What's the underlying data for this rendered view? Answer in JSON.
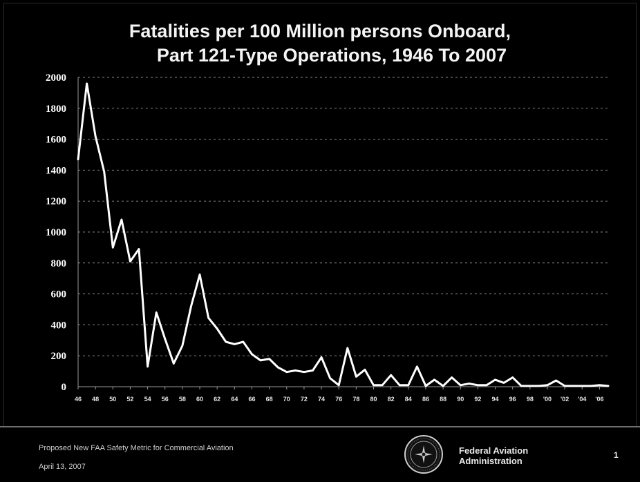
{
  "chart_data": {
    "type": "line",
    "title": [
      "Fatalities per 100 Million persons Onboard,",
      "Part 121-Type Operations, 1946 To 2007"
    ],
    "xlabel": "",
    "ylabel": "",
    "ylim": [
      0,
      2000
    ],
    "y_ticks": [
      "0",
      "200",
      "400",
      "600",
      "800",
      "1000",
      "1200",
      "1400",
      "1600",
      "1800",
      "2000"
    ],
    "x_ticks": [
      "46",
      "48",
      "50",
      "52",
      "54",
      "56",
      "58",
      "60",
      "62",
      "64",
      "66",
      "68",
      "70",
      "72",
      "74",
      "76",
      "78",
      "80",
      "82",
      "84",
      "86",
      "88",
      "90",
      "92",
      "94",
      "96",
      "98",
      "'00",
      "'02",
      "'04",
      "'06"
    ],
    "x_range": [
      1946,
      2007
    ],
    "grid": "horizontal dashed",
    "series": [
      {
        "x": [
          1946,
          1947,
          1948,
          1949,
          1950,
          1951,
          1952,
          1953,
          1954,
          1955,
          1956,
          1957,
          1958,
          1959,
          1960,
          1961,
          1962,
          1963,
          1964,
          1965,
          1966,
          1967,
          1968,
          1969,
          1970,
          1971,
          1972,
          1973,
          1974,
          1975,
          1976,
          1977,
          1978,
          1979,
          1980,
          1981,
          1982,
          1983,
          1984,
          1985,
          1986,
          1987,
          1988,
          1989,
          1990,
          1991,
          1992,
          1993,
          1994,
          1995,
          1996,
          1997,
          1998,
          1999,
          2000,
          2001,
          2002,
          2003,
          2004,
          2005,
          2006,
          2007
        ],
        "values": [
          1470,
          1960,
          1620,
          1390,
          900,
          1080,
          810,
          890,
          130,
          480,
          310,
          150,
          265,
          520,
          725,
          445,
          375,
          290,
          275,
          290,
          210,
          170,
          180,
          125,
          95,
          105,
          95,
          105,
          190,
          55,
          10,
          250,
          65,
          110,
          10,
          10,
          75,
          10,
          10,
          130,
          5,
          45,
          5,
          60,
          10,
          20,
          10,
          10,
          45,
          25,
          60,
          5,
          5,
          5,
          10,
          40,
          5,
          5,
          5,
          5,
          10,
          5
        ]
      }
    ]
  },
  "footer": {
    "caption": "Proposed New FAA Safety Metric for Commercial Aviation",
    "date": "April 13, 2007",
    "agency_line1": "Federal Aviation",
    "agency_line2": "Administration",
    "page_number": "1"
  },
  "colors": {
    "background": "#000000",
    "line": "#ffffff",
    "grid": "#8a8a8a"
  }
}
